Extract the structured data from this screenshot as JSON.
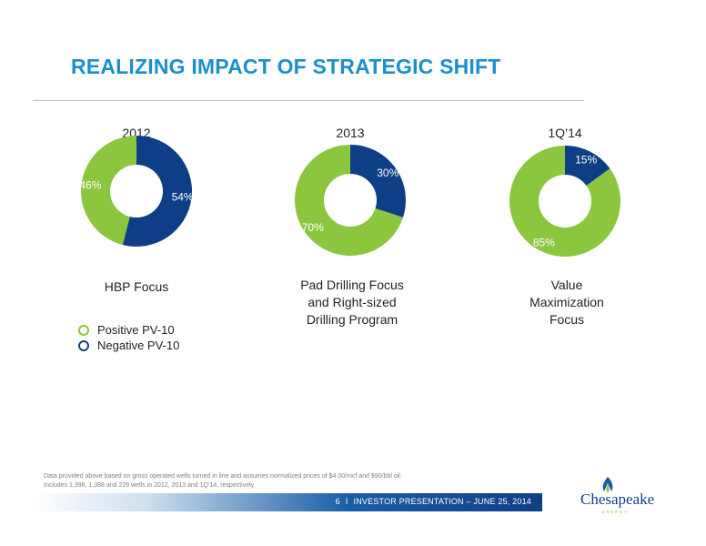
{
  "slide": {
    "title": "REALIZING IMPACT OF STRATEGIC SHIFT"
  },
  "colors": {
    "accent": "#1a8fcf",
    "positive": "#8cc63f",
    "negative": "#0e3f86",
    "label_on_positive": "#ffffff",
    "label_on_negative": "#ffffff"
  },
  "chart_data": [
    {
      "type": "pie",
      "title": "2012",
      "categories": [
        "Positive PV-10",
        "Negative PV-10"
      ],
      "values": [
        46,
        54
      ],
      "labels": [
        "46%",
        "54%"
      ],
      "caption": [
        "HBP Focus"
      ]
    },
    {
      "type": "pie",
      "title": "2013",
      "categories": [
        "Positive PV-10",
        "Negative PV-10"
      ],
      "values": [
        70,
        30
      ],
      "labels": [
        "70%",
        "30%"
      ],
      "caption": [
        "Pad Drilling Focus",
        "and Right-sized",
        "Drilling Program"
      ]
    },
    {
      "type": "pie",
      "title": "1Q’14",
      "categories": [
        "Positive PV-10",
        "Negative PV-10"
      ],
      "values": [
        85,
        15
      ],
      "labels": [
        "85%",
        "15%"
      ],
      "caption": [
        "Value",
        "Maximization",
        "Focus"
      ]
    }
  ],
  "legend": {
    "items": [
      {
        "label": "Positive PV-10",
        "color": "#8cc63f"
      },
      {
        "label": "Negative PV-10",
        "color": "#0e3f86"
      }
    ]
  },
  "footnote": {
    "line1": "Data provided above based on gross operated wells turned in line and assumes normalized prices of $4.00/mcf and $90/bbl oil.",
    "line2": "Includes 1,396, 1,388 and 226 wells in 2012, 2013 and 1Q’14, respectively"
  },
  "footer": {
    "page_number": "6",
    "separator": "I",
    "presentation": "INVESTOR PRESENTATION – JUNE 25, 2014"
  },
  "logo": {
    "icon": "flame-logo-icon",
    "name": "Chesapeake",
    "tagline": "ENERGY"
  }
}
